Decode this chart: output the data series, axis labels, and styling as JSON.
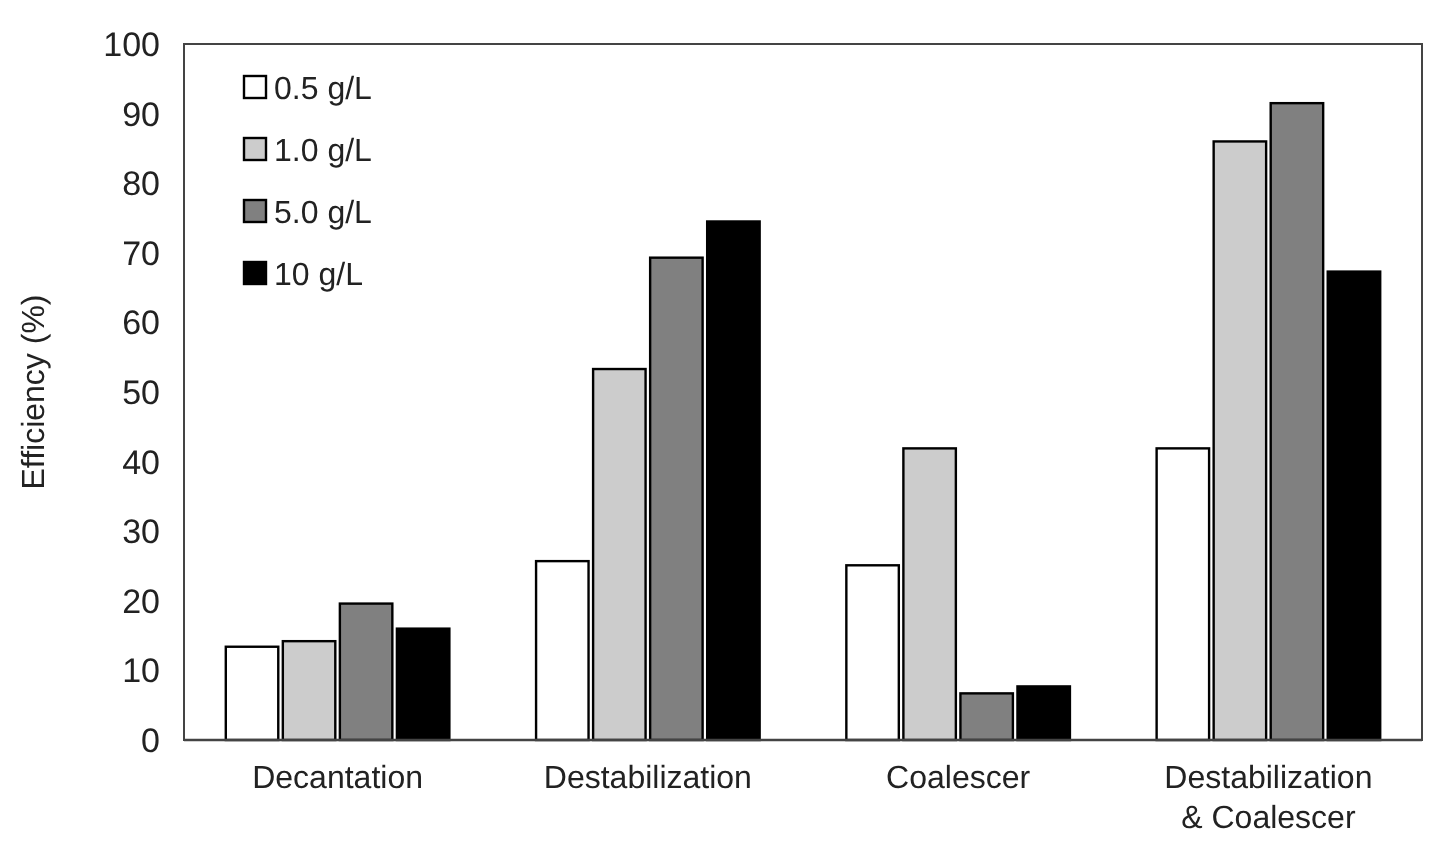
{
  "chart_data": {
    "type": "bar",
    "ylabel": "Efficiency (%)",
    "categories": [
      "Decantation",
      "Destabilization",
      "Coalescer",
      "Destabilization & Coalescer"
    ],
    "series": [
      {
        "name": "0.5 g/L",
        "color": "#ffffff",
        "values": [
          13.4,
          25.7,
          25.1,
          41.9
        ]
      },
      {
        "name": "1.0 g/L",
        "color": "#cccccc",
        "values": [
          14.2,
          53.3,
          41.9,
          86.0
        ]
      },
      {
        "name": "5.0 g/L",
        "color": "#808080",
        "values": [
          19.6,
          69.3,
          6.7,
          91.5
        ]
      },
      {
        "name": "10 g/L",
        "color": "#000000",
        "values": [
          16.0,
          74.5,
          7.7,
          67.3
        ]
      }
    ],
    "ylim": [
      0,
      100
    ],
    "yticks": [
      0,
      10,
      20,
      30,
      40,
      50,
      60,
      70,
      80,
      90,
      100
    ],
    "grid": false,
    "legend": "top left"
  }
}
